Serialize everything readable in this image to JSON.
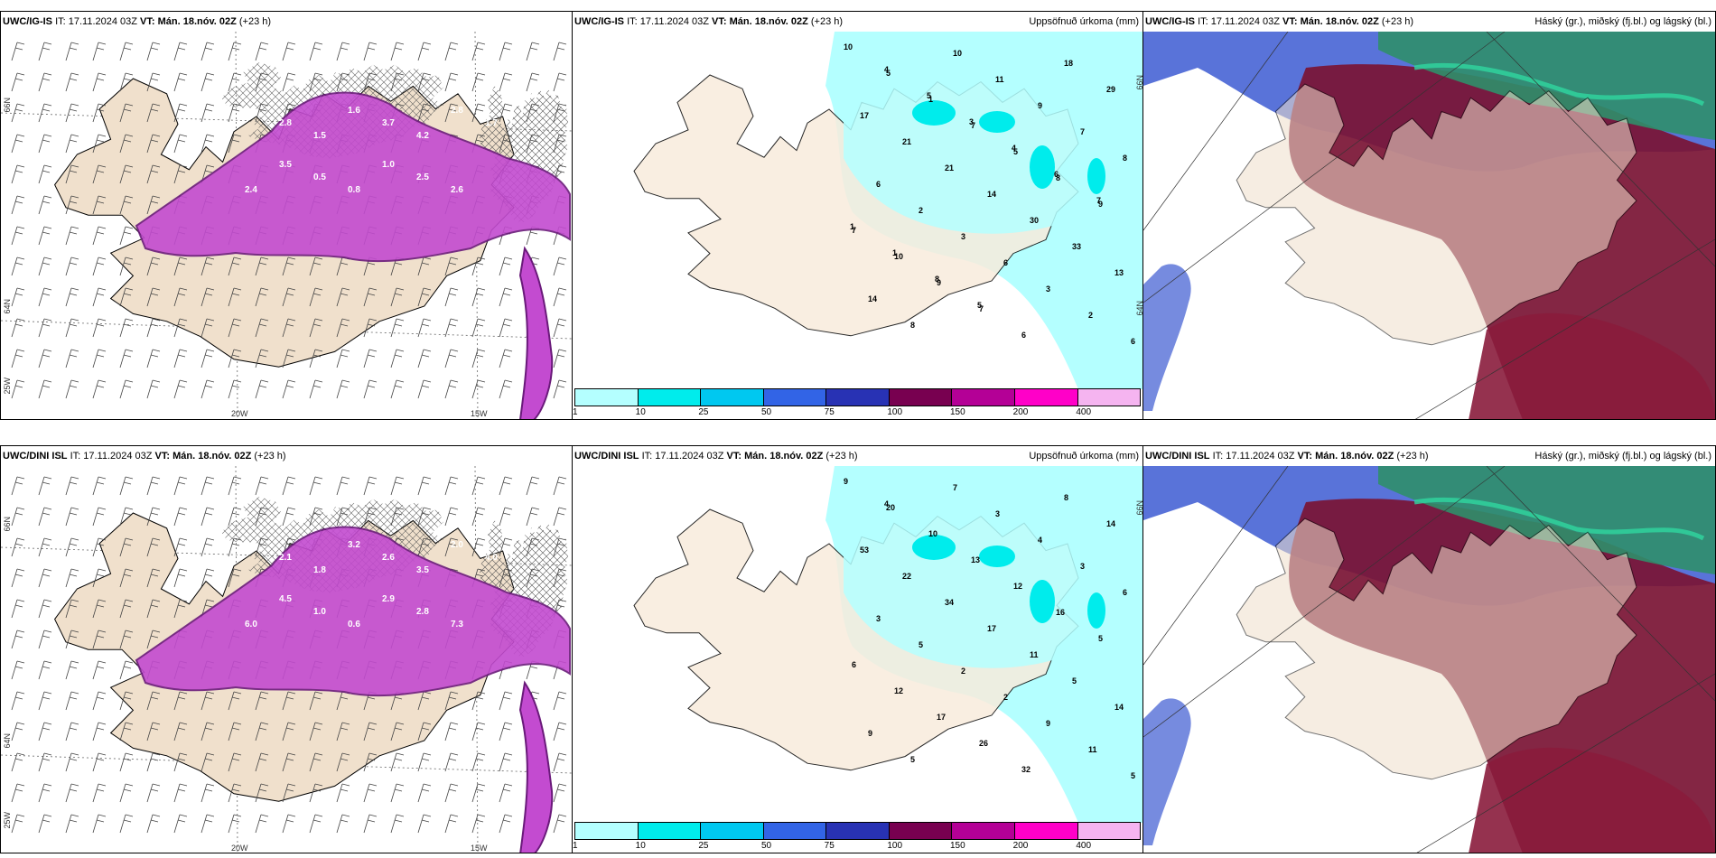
{
  "panels": [
    {
      "model": "UWC/IG-IS",
      "it": "IT: 17.11.2024 03Z",
      "vt": "VT: Mán. 18.nóv. 02Z",
      "lead": "(+23 h)",
      "right": ""
    },
    {
      "model": "UWC/IG-IS",
      "it": "IT: 17.11.2024 03Z",
      "vt": "VT: Mán. 18.nóv. 02Z",
      "lead": "(+23 h)",
      "right": "Uppsöfnuð úrkoma (mm)"
    },
    {
      "model": "UWC/IG-IS",
      "it": "IT: 17.11.2024 03Z",
      "vt": "VT: Mán. 18.nóv. 02Z",
      "lead": "(+23 h)",
      "right": "Háský (gr.), miðský (fj.bl.) og lágský (bl.)"
    },
    {
      "model": "UWC/DINI ISL",
      "it": "IT: 17.11.2024 03Z",
      "vt": "VT: Mán. 18.nóv. 02Z",
      "lead": "(+23 h)",
      "right": ""
    },
    {
      "model": "UWC/DINI ISL",
      "it": "IT: 17.11.2024 03Z",
      "vt": "VT: Mán. 18.nóv. 02Z",
      "lead": "(+23 h)",
      "right": "Uppsöfnuð úrkoma (mm)"
    },
    {
      "model": "UWC/DINI ISL",
      "it": "IT: 17.11.2024 03Z",
      "vt": "VT: Mán. 18.nóv. 02Z",
      "lead": "(+23 h)",
      "right": "Háský (gr.), miðský (fj.bl.) og lágský (bl.)"
    }
  ],
  "grid_labels": {
    "lat66": "66N",
    "lat64": "64N",
    "lon20": "20W",
    "lon15": "15W",
    "lon25": "25W"
  },
  "colorbar": {
    "labels": [
      "1",
      "10",
      "25",
      "50",
      "75",
      "100",
      "150",
      "200",
      "400"
    ],
    "colors": [
      "#b4ffff",
      "#00ecec",
      "#00c8f0",
      "#3264e6",
      "#2832b4",
      "#780050",
      "#b40096",
      "#ff00c8",
      "#f5b4f0"
    ]
  },
  "precip_ig": [
    "10",
    "5",
    "1",
    "7",
    "5",
    "8",
    "9",
    "7",
    "10",
    "9",
    "7",
    "6",
    "18",
    "29",
    "17",
    "21",
    "21",
    "14",
    "30",
    "33",
    "13",
    "14",
    "8",
    "10",
    "11",
    "9",
    "7",
    "8",
    "6",
    "2",
    "3",
    "6",
    "3",
    "2",
    "6",
    "4",
    "5",
    "3",
    "4",
    "6",
    "7",
    "1",
    "1",
    "8",
    "5"
  ],
  "precip_dini": [
    "9",
    "20",
    "10",
    "13",
    "12",
    "16",
    "5",
    "6",
    "12",
    "17",
    "26",
    "32",
    "8",
    "14",
    "53",
    "22",
    "34",
    "17",
    "11",
    "5",
    "14",
    "9",
    "5",
    "7",
    "3",
    "4",
    "3",
    "6",
    "3",
    "5",
    "2",
    "2",
    "9",
    "11",
    "5",
    "4"
  ],
  "snow_ig": [
    "2.5",
    "2.8",
    "1.5",
    "1.6",
    "3.7",
    "4.2",
    "2.8",
    "1.7",
    "2.4",
    "3.5",
    "0.5",
    "0.8",
    "1.0",
    "2.5",
    "2.6"
  ],
  "snow_dini": [
    "3.7",
    "2.1",
    "1.8",
    "3.2",
    "2.6",
    "3.5",
    "2.0",
    "4.0",
    "6.0",
    "4.5",
    "1.0",
    "0.6",
    "2.9",
    "2.8",
    "7.3"
  ]
}
